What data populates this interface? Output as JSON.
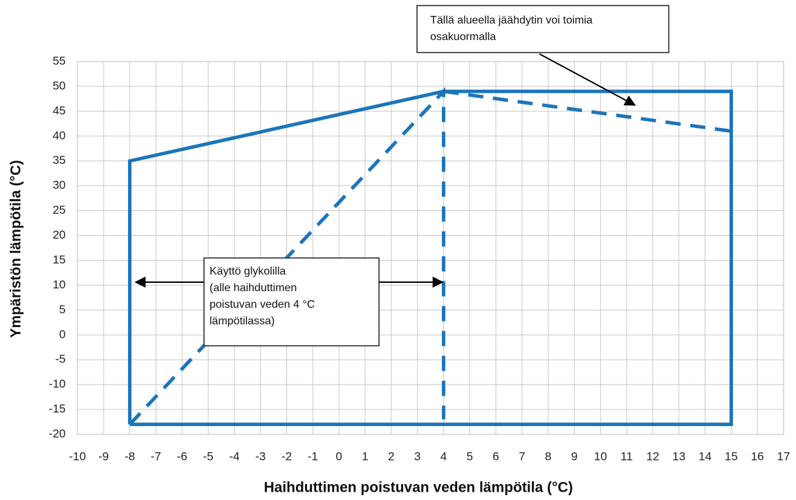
{
  "chart_data": {
    "type": "line",
    "x_label": "Haihduttimen poistuvan veden lämpötila (°C)",
    "y_label": "Ympäristön lämpötila (°C)",
    "xlim": [
      -10,
      17
    ],
    "xticks": [
      -10,
      -9,
      -8,
      -7,
      -6,
      -5,
      -4,
      -3,
      -2,
      -1,
      0,
      1,
      2,
      3,
      4,
      5,
      6,
      7,
      8,
      9,
      10,
      11,
      12,
      13,
      14,
      15,
      16,
      17
    ],
    "ylim": [
      -20,
      55
    ],
    "yticks": [
      -20,
      -15,
      -10,
      -5,
      0,
      5,
      10,
      15,
      20,
      25,
      30,
      35,
      40,
      45,
      50,
      55
    ],
    "grid": true,
    "series": [
      {
        "color": "#1b75bb",
        "dashed": false,
        "x": [
          -8,
          -8,
          4,
          15,
          15,
          -8
        ],
        "values": [
          -18,
          35,
          49,
          49,
          -18,
          -18
        ]
      },
      {
        "color": "#1b75bb",
        "dashed": true,
        "x": [
          -8,
          4,
          4
        ],
        "values": [
          -18,
          49,
          -17
        ]
      },
      {
        "color": "#1b75bb",
        "dashed": true,
        "x": [
          4,
          15
        ],
        "values": [
          49,
          41
        ]
      }
    ],
    "annotations": [
      {
        "lines": [
          "Tällä  alueella jäähdytin  voi  toimia",
          "osakuormalla"
        ]
      },
      {
        "lines": [
          "Käyttö glykolilla",
          "(alle  haihduttimen",
          "poistuvan  veden  4  °C",
          "lämpötilassa)"
        ]
      }
    ]
  }
}
